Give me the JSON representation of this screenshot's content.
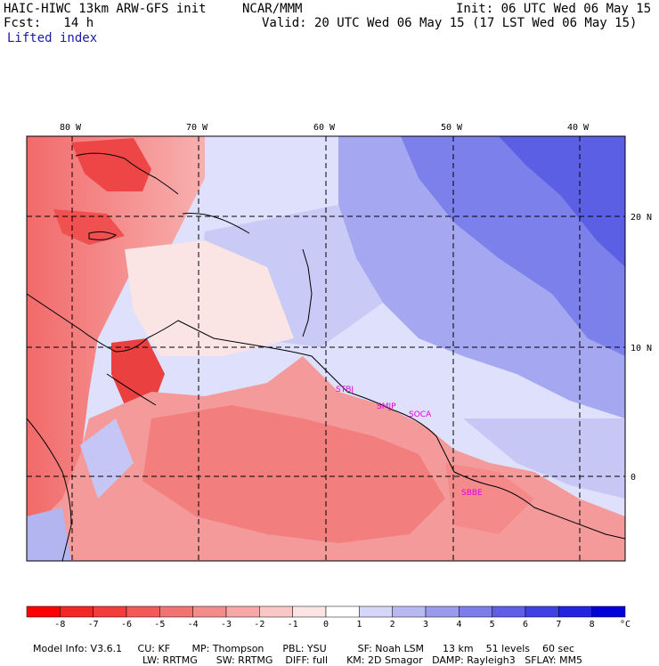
{
  "header": {
    "model": "HAIC-HIWC 13km ARW-GFS init",
    "org": "NCAR/MMM",
    "init": "Init: 06 UTC Wed 06 May 15",
    "fcst": "Fcst:   14 h",
    "valid": "Valid: 20 UTC Wed 06 May 15 (17 LST Wed 06 May 15)",
    "field": "Lifted index"
  },
  "map": {
    "lon_labels": [
      "80 W",
      "70 W",
      "60 W",
      "50 W",
      "40 W"
    ],
    "lat_labels": [
      "20 N",
      "10 N",
      "0"
    ],
    "stations": [
      "STBJ",
      "SMJP",
      "SOCA",
      "SBBE"
    ]
  },
  "colorbar": {
    "ticks": [
      "-8",
      "-7",
      "-6",
      "-5",
      "-4",
      "-3",
      "-2",
      "-1",
      "0",
      "1",
      "2",
      "3",
      "4",
      "5",
      "6",
      "7",
      "8"
    ],
    "unit": "°C",
    "colors": [
      "#ff0000",
      "#f52626",
      "#f33c3c",
      "#f25a5a",
      "#f37373",
      "#f58c8c",
      "#f7a8a8",
      "#fac6c6",
      "#fde4e4",
      "#ffffff",
      "#d6d6f8",
      "#b8b8f3",
      "#9a9aee",
      "#7c7cea",
      "#5e5ee6",
      "#4141e3",
      "#2323e0",
      "#0000dd"
    ]
  },
  "footer": {
    "line1": [
      "Model Info: V3.6.1",
      "CU: KF",
      "MP: Thompson",
      "PBL: YSU",
      "SF: Noah LSM",
      "13 km",
      "51 levels",
      "60 sec"
    ],
    "line2": [
      "LW: RRTMG",
      "SW: RRTMG",
      "DIFF: full",
      "KM: 2D Smagor",
      "DAMP: Rayleigh3",
      "SFLAY: MM5"
    ]
  }
}
